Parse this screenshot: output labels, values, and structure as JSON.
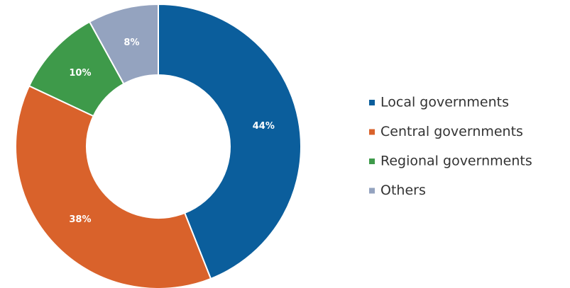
{
  "chart_data": {
    "type": "pie",
    "categories": [
      "Local governments",
      "Central governments",
      "Regional governments",
      "Others"
    ],
    "values": [
      44,
      38,
      10,
      8
    ],
    "value_labels": [
      "44%",
      "38%",
      "10%",
      "8%"
    ],
    "colors": [
      "#0b5e9c",
      "#d9622b",
      "#3e9a4a",
      "#94a3bf"
    ],
    "legend": "right"
  }
}
